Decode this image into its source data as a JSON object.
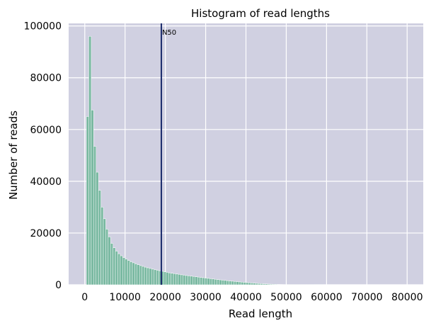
{
  "chart_data": {
    "type": "bar",
    "title": "Histogram of read lengths",
    "xlabel": "Read length",
    "ylabel": "Number of reads",
    "xlim": [
      -4000,
      84000
    ],
    "ylim": [
      0,
      101000
    ],
    "xticks": [
      0,
      10000,
      20000,
      30000,
      40000,
      50000,
      60000,
      70000,
      80000
    ],
    "yticks": [
      0,
      20000,
      40000,
      60000,
      80000,
      100000
    ],
    "grid": true,
    "bin_width": 600,
    "bin_start": 400,
    "counts": [
      65000,
      96000,
      67500,
      53500,
      43500,
      36500,
      30000,
      25500,
      21500,
      18500,
      16000,
      14300,
      13000,
      12000,
      11200,
      10500,
      9900,
      9400,
      8900,
      8500,
      8100,
      7750,
      7400,
      7100,
      6800,
      6550,
      6300,
      6050,
      5800,
      5600,
      5400,
      5200,
      5000,
      4800,
      4600,
      4450,
      4300,
      4150,
      4000,
      3850,
      3700,
      3570,
      3450,
      3330,
      3200,
      3080,
      2960,
      2840,
      2720,
      2600,
      2480,
      2360,
      2240,
      2120,
      2000,
      1890,
      1780,
      1680,
      1580,
      1480,
      1380,
      1290,
      1200,
      1110,
      1020,
      940,
      860,
      780,
      700,
      630,
      560,
      500,
      440,
      380,
      330,
      280,
      240,
      200,
      165,
      135,
      110,
      90,
      72,
      58,
      46,
      36,
      28,
      22,
      17,
      13,
      10,
      8,
      6,
      5,
      4,
      3,
      2,
      2,
      1,
      1
    ],
    "n50": {
      "x": 19000,
      "label": "N50"
    },
    "colors": {
      "background": "#d0d0e1",
      "bars": "#78b8a0",
      "bar_edge": "#ffffff",
      "grid": "#ffffff",
      "n50_line": "#1a2a6b"
    }
  }
}
